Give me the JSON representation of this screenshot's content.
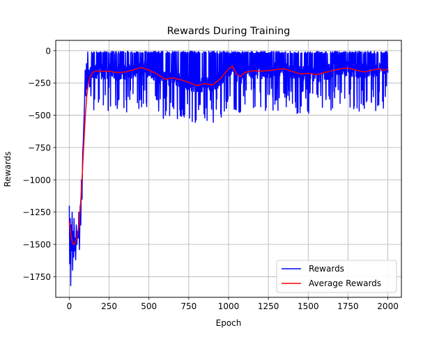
{
  "chart_data": {
    "type": "line",
    "title": "Rewards During Training",
    "xlabel": "Epoch",
    "ylabel": "Rewards",
    "xlim": [
      -85,
      2085
    ],
    "ylim": [
      -1910,
      80
    ],
    "xticks": [
      0,
      250,
      500,
      750,
      1000,
      1250,
      1500,
      1750,
      2000
    ],
    "xtick_labels": [
      "0",
      "250",
      "500",
      "750",
      "1000",
      "1250",
      "1500",
      "1750",
      "2000"
    ],
    "yticks": [
      0,
      -250,
      -500,
      -750,
      -1000,
      -1250,
      -1500,
      -1750
    ],
    "ytick_labels": [
      "0",
      "−250",
      "−500",
      "−750",
      "−1000",
      "−1250",
      "−1500",
      "−1750"
    ],
    "grid": true,
    "legend_position": "lower-right",
    "series": [
      {
        "name": "Rewards",
        "color": "#0000ff",
        "points": [
          [
            0,
            -1200
          ],
          [
            3,
            -1650
          ],
          [
            6,
            -1300
          ],
          [
            9,
            -1820
          ],
          [
            12,
            -1350
          ],
          [
            15,
            -1550
          ],
          [
            18,
            -1250
          ],
          [
            21,
            -1700
          ],
          [
            24,
            -1400
          ],
          [
            27,
            -1600
          ],
          [
            30,
            -1300
          ],
          [
            33,
            -1550
          ],
          [
            36,
            -1450
          ],
          [
            40,
            -1620
          ],
          [
            44,
            -1350
          ],
          [
            48,
            -1500
          ],
          [
            52,
            -1400
          ],
          [
            56,
            -1450
          ],
          [
            60,
            -1250
          ],
          [
            64,
            -1540
          ],
          [
            68,
            -1200
          ],
          [
            72,
            -1350
          ],
          [
            76,
            -1000
          ],
          [
            80,
            -1150
          ],
          [
            84,
            -800
          ],
          [
            88,
            -700
          ],
          [
            92,
            -550
          ],
          [
            96,
            -400
          ],
          [
            100,
            -150
          ],
          [
            104,
            -350
          ],
          [
            108,
            -100
          ],
          [
            112,
            -300
          ],
          [
            116,
            -10
          ],
          [
            120,
            -250
          ],
          [
            124,
            -150
          ],
          [
            128,
            -280
          ],
          [
            132,
            -130
          ],
          [
            136,
            -350
          ],
          [
            140,
            -10
          ]
        ]
      },
      {
        "name": "Average Rewards",
        "color": "#ff0000",
        "points": [
          [
            0,
            -1320
          ],
          [
            10,
            -1420
          ],
          [
            20,
            -1490
          ],
          [
            30,
            -1500
          ],
          [
            40,
            -1480
          ],
          [
            50,
            -1440
          ],
          [
            60,
            -1350
          ],
          [
            70,
            -1200
          ],
          [
            80,
            -1000
          ],
          [
            90,
            -750
          ],
          [
            100,
            -520
          ],
          [
            110,
            -350
          ],
          [
            120,
            -250
          ],
          [
            130,
            -200
          ],
          [
            150,
            -165
          ],
          [
            175,
            -155
          ],
          [
            200,
            -160
          ],
          [
            250,
            -158
          ],
          [
            300,
            -170
          ],
          [
            350,
            -165
          ],
          [
            400,
            -150
          ],
          [
            450,
            -130
          ],
          [
            500,
            -150
          ],
          [
            550,
            -180
          ],
          [
            600,
            -220
          ],
          [
            650,
            -210
          ],
          [
            700,
            -225
          ],
          [
            750,
            -245
          ],
          [
            800,
            -270
          ],
          [
            850,
            -255
          ],
          [
            900,
            -265
          ],
          [
            950,
            -215
          ],
          [
            1000,
            -140
          ],
          [
            1025,
            -120
          ],
          [
            1050,
            -180
          ],
          [
            1075,
            -200
          ],
          [
            1100,
            -170
          ],
          [
            1150,
            -155
          ],
          [
            1200,
            -158
          ],
          [
            1250,
            -155
          ],
          [
            1300,
            -145
          ],
          [
            1350,
            -140
          ],
          [
            1400,
            -160
          ],
          [
            1450,
            -180
          ],
          [
            1500,
            -175
          ],
          [
            1550,
            -185
          ],
          [
            1600,
            -170
          ],
          [
            1650,
            -155
          ],
          [
            1700,
            -140
          ],
          [
            1750,
            -135
          ],
          [
            1800,
            -150
          ],
          [
            1850,
            -165
          ],
          [
            1900,
            -150
          ],
          [
            1950,
            -140
          ],
          [
            1975,
            -155
          ],
          [
            2000,
            -140
          ]
        ]
      }
    ]
  }
}
